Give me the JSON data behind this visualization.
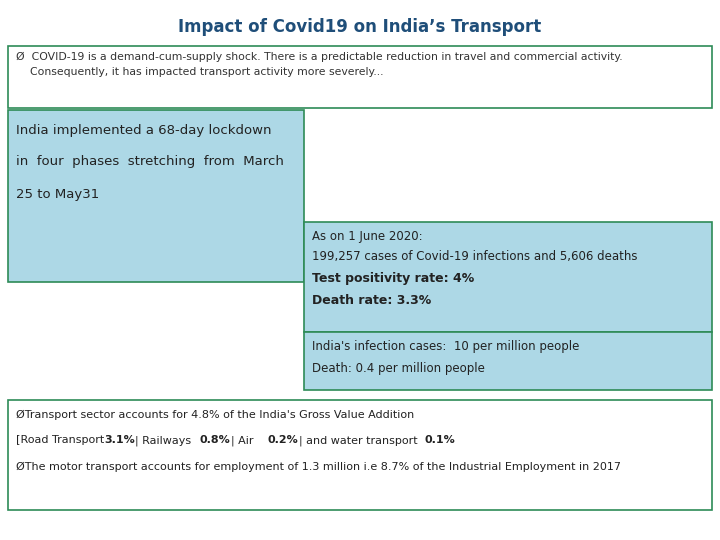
{
  "title": "Impact of Covid19 on India’s Transport",
  "title_color": "#1F4E79",
  "title_fontsize": 11,
  "bullet_text": "Ø  COVID-19 is a demand-cum-supply shock. There is a predictable reduction in travel and commercial activity.\n    Consequently, it has impacted transport activity more severely...",
  "left_box_line1": "India implemented a 68-day lockdown",
  "left_box_line2": "in  four  phases  stretching  from  March",
  "left_box_line3": "25 to May31",
  "right_top_text_normal1": "As on 1 June 2020:",
  "right_top_text_normal2": "199,257 cases of Covid-19 infections and 5,606 deaths",
  "right_top_text_bold1": "Test positivity rate: 4%",
  "right_top_text_bold2": "Death rate: 3.3%",
  "right_bottom_text1": "India's infection cases:  10 per million people",
  "right_bottom_text2": "Death: 0.4 per million people",
  "bottom_text1": "ØTransport sector accounts for 4.8% of the India's Gross Value Addition",
  "bottom_text2_prefix": "[Road Transport ",
  "bottom_text2_bold1": "3.1%",
  "bottom_text2_mid1": "  | Railways ",
  "bottom_text2_bold2": "0.8%",
  "bottom_text2_mid2": "  | Air ",
  "bottom_text2_bold3": "0.2%",
  "bottom_text2_mid3": "  | and water transport ",
  "bottom_text2_bold4": "0.1%",
  "bottom_text3": "ØThe motor transport accounts for employment of 1.3 million i.e 8.7% of the Industrial Employment in 2017",
  "light_blue": "#ADD8E6",
  "border_color": "#2E8B57",
  "bg_color": "#FFFFFF",
  "fig_width": 7.2,
  "fig_height": 5.4,
  "dpi": 100
}
